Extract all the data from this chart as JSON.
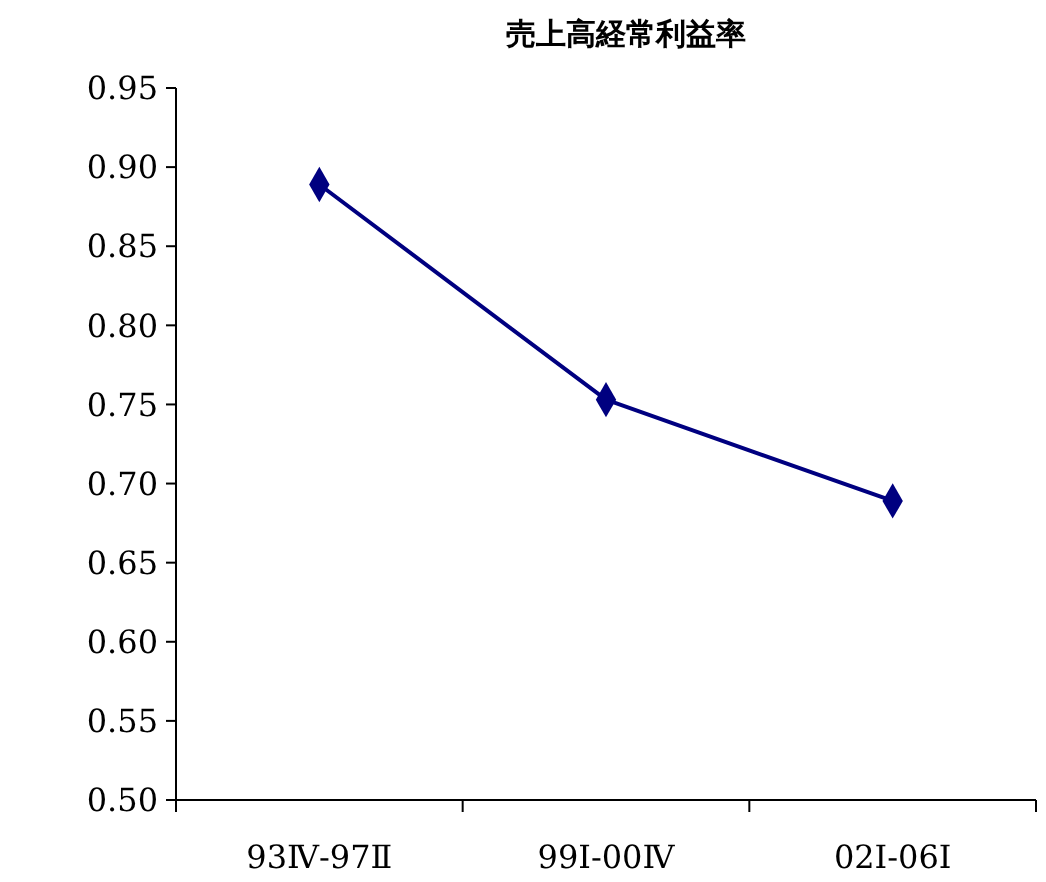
{
  "chart_data": {
    "type": "line",
    "title": "売上高経常利益率",
    "categories": [
      "93Ⅳ-97Ⅱ",
      "99Ⅰ-00Ⅳ",
      "02Ⅰ-06Ⅰ"
    ],
    "series": [
      {
        "color": "#000080",
        "values": [
          0.889,
          0.753,
          0.689
        ]
      }
    ],
    "ylim": [
      0.5,
      0.95
    ],
    "yticks": [
      {
        "value": 0.5,
        "label": "0.50"
      },
      {
        "value": 0.55,
        "label": "0.55"
      },
      {
        "value": 0.6,
        "label": "0.60"
      },
      {
        "value": 0.65,
        "label": "0.65"
      },
      {
        "value": 0.7,
        "label": "0.70"
      },
      {
        "value": 0.75,
        "label": "0.75"
      },
      {
        "value": 0.8,
        "label": "0.80"
      },
      {
        "value": 0.85,
        "label": "0.85"
      },
      {
        "value": 0.9,
        "label": "0.90"
      },
      {
        "value": 0.95,
        "label": "0.95"
      }
    ],
    "marker": "diamond"
  }
}
